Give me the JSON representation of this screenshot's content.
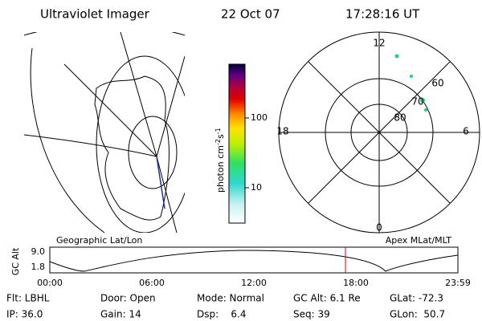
{
  "header": {
    "title": "Ultraviolet Imager",
    "date": "22 Oct 07",
    "time": "17:28:16 UT"
  },
  "colorbar": {
    "label": "photon cm",
    "exp1": "-2",
    "unit2": "s",
    "exp2": "-1",
    "ticks": [
      "100",
      "10"
    ]
  },
  "polar": {
    "mlt_labels": [
      "12",
      "18",
      "6",
      "0"
    ],
    "lat_labels": [
      "60",
      "70",
      "80"
    ]
  },
  "altitude": {
    "ylabel": "GC Alt",
    "yticks": [
      "9.0",
      "1.8"
    ],
    "left_label": "Geographic Lat/Lon",
    "right_label": "Apex MLat/MLT",
    "xticks": [
      "00:00",
      "06:00",
      "12:00",
      "18:00",
      "23:59"
    ]
  },
  "footer": [
    [
      "Flt: LBHL",
      "Door: Open",
      "Mode: Normal",
      "GC Alt: 6.1 Re",
      "GLat: -72.3"
    ],
    [
      "IP: 36.0",
      "Gain: 14",
      "Dsp:    6.4",
      "Seq: 39",
      "GLon:  50.7"
    ]
  ]
}
